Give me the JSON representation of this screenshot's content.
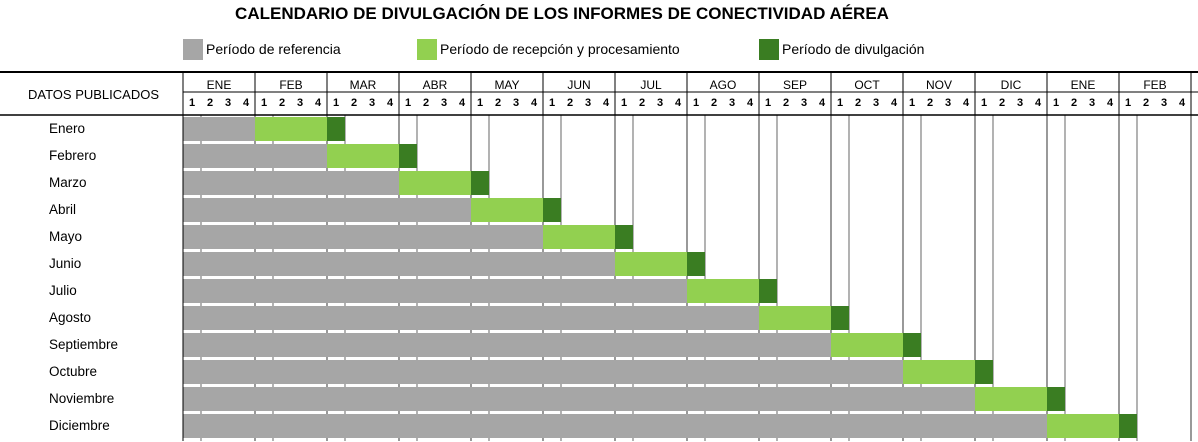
{
  "title": "CALENDARIO DE DIVULGACIÓN DE LOS INFORMES DE CONECTIVIDAD AÉREA",
  "legend": [
    {
      "label": "Período de referencia",
      "color": "#a6a6a6"
    },
    {
      "label": "Período de recepción y procesamiento",
      "color": "#92d050"
    },
    {
      "label": "Período de divulgación",
      "color": "#3a7d22"
    }
  ],
  "chart_data": {
    "type": "bar",
    "row_header": "DATOS PUBLICADOS",
    "months": [
      "ENE",
      "FEB",
      "MAR",
      "ABR",
      "MAY",
      "JUN",
      "JUL",
      "AGO",
      "SEP",
      "OCT",
      "NOV",
      "DIC",
      "ENE",
      "FEB"
    ],
    "weeks": [
      "1",
      "2",
      "3",
      "4"
    ],
    "rows": [
      {
        "label": "Enero",
        "reference_end_week": 4,
        "processing_end_week": 8,
        "publication_end_week": 9
      },
      {
        "label": "Febrero",
        "reference_end_week": 8,
        "processing_end_week": 12,
        "publication_end_week": 13
      },
      {
        "label": "Marzo",
        "reference_end_week": 12,
        "processing_end_week": 16,
        "publication_end_week": 17
      },
      {
        "label": "Abril",
        "reference_end_week": 16,
        "processing_end_week": 20,
        "publication_end_week": 21
      },
      {
        "label": "Mayo",
        "reference_end_week": 20,
        "processing_end_week": 24,
        "publication_end_week": 25
      },
      {
        "label": "Junio",
        "reference_end_week": 24,
        "processing_end_week": 28,
        "publication_end_week": 29
      },
      {
        "label": "Julio",
        "reference_end_week": 28,
        "processing_end_week": 32,
        "publication_end_week": 33
      },
      {
        "label": "Agosto",
        "reference_end_week": 32,
        "processing_end_week": 36,
        "publication_end_week": 37
      },
      {
        "label": "Septiembre",
        "reference_end_week": 36,
        "processing_end_week": 40,
        "publication_end_week": 41
      },
      {
        "label": "Octubre",
        "reference_end_week": 40,
        "processing_end_week": 44,
        "publication_end_week": 45
      },
      {
        "label": "Noviembre",
        "reference_end_week": 44,
        "processing_end_week": 48,
        "publication_end_week": 49
      },
      {
        "label": "Diciembre",
        "reference_end_week": 48,
        "processing_end_week": 52,
        "publication_end_week": 53
      }
    ]
  }
}
